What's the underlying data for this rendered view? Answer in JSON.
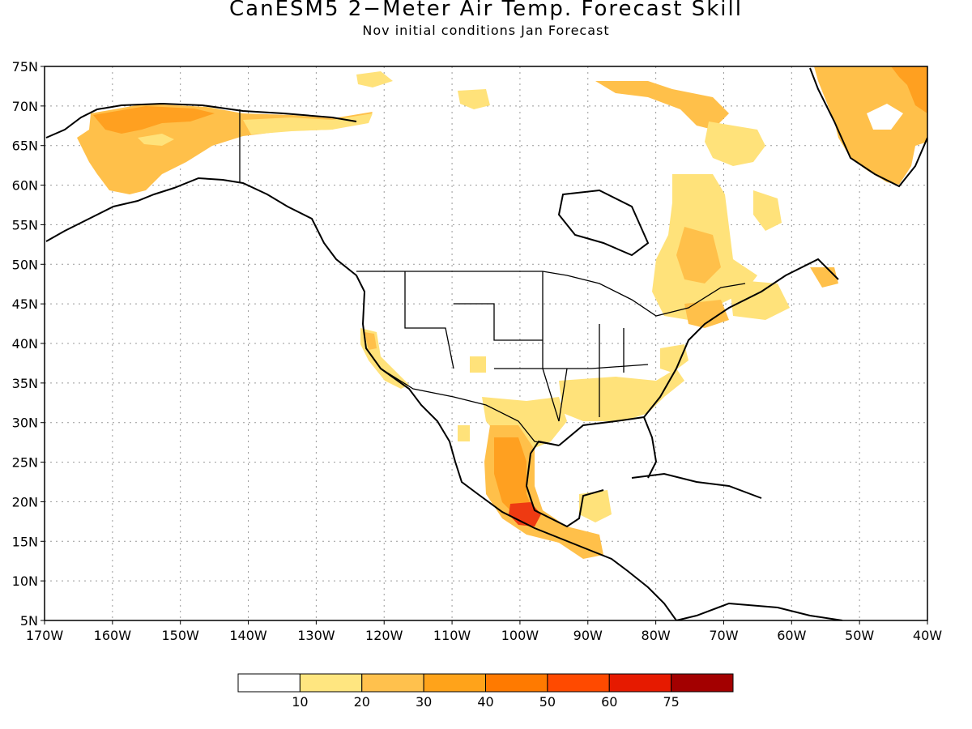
{
  "title": "CanESM5 2−Meter Air Temp. Forecast Skill",
  "subtitle": "Nov initial conditions  Jan Forecast",
  "map": {
    "lon_range": [
      -170,
      -40
    ],
    "lat_range": [
      5,
      75
    ],
    "lat_ticks": [
      "75N",
      "70N",
      "65N",
      "60N",
      "55N",
      "50N",
      "45N",
      "40N",
      "35N",
      "30N",
      "25N",
      "20N",
      "15N",
      "10N",
      "5N"
    ],
    "lon_ticks": [
      "170W",
      "160W",
      "150W",
      "140W",
      "130W",
      "120W",
      "110W",
      "100W",
      "90W",
      "80W",
      "70W",
      "60W",
      "50W",
      "40W"
    ],
    "grid": "dotted"
  },
  "colorbar": {
    "colors": [
      "#ffffff",
      "#ffe680",
      "#ffc14d",
      "#ffa31a",
      "#ff7a00",
      "#ff4a00",
      "#e61a00",
      "#a30000"
    ],
    "labels": [
      "10",
      "20",
      "30",
      "40",
      "50",
      "60",
      "75"
    ]
  },
  "colors": {
    "level1": "#ffe27a",
    "level2": "#ffc04a",
    "level3": "#ffa020",
    "level4": "#ff7a10",
    "level5": "#ee3a12"
  }
}
